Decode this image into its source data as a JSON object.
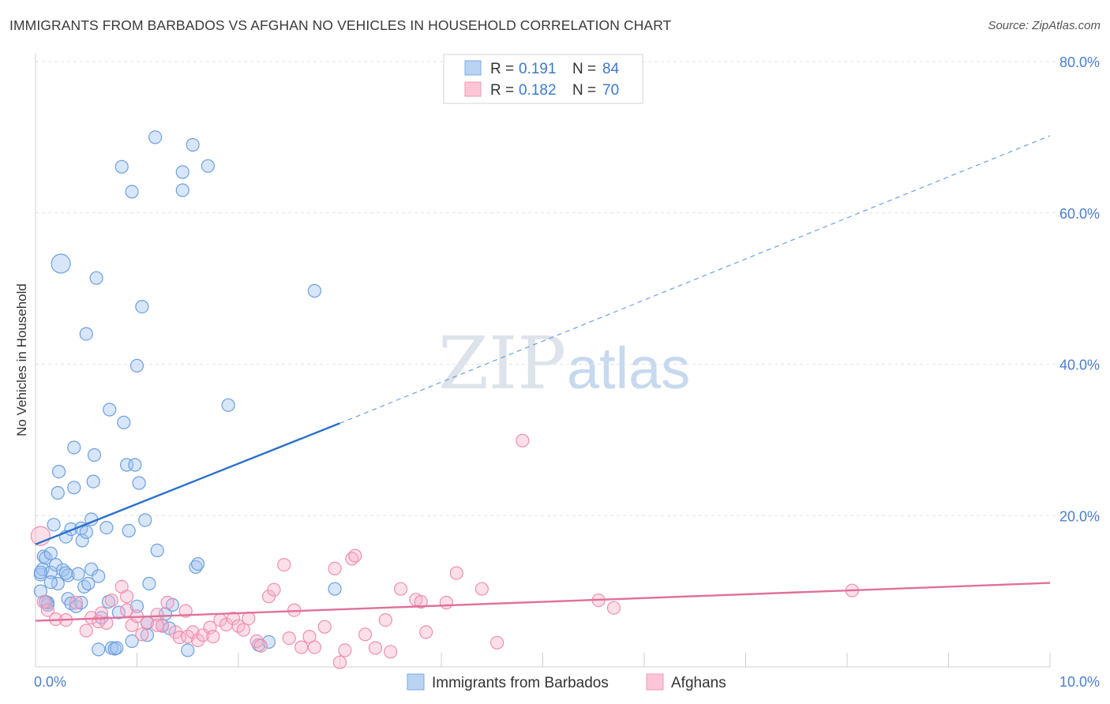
{
  "title": "IMMIGRANTS FROM BARBADOS VS AFGHAN NO VEHICLES IN HOUSEHOLD CORRELATION CHART",
  "source": "Source: ZipAtlas.com",
  "watermark": {
    "zip": "ZIP",
    "atlas": "atlas"
  },
  "legend": {
    "rows": [
      {
        "r_label": "R = ",
        "r_value": "0.191",
        "n_label": "N = ",
        "n_value": "84"
      },
      {
        "r_label": "R = ",
        "r_value": "0.182",
        "n_label": "N = ",
        "n_value": "70"
      }
    ]
  },
  "chart_data": {
    "type": "scatter",
    "title": "IMMIGRANTS FROM BARBADOS VS AFGHAN NO VEHICLES IN HOUSEHOLD CORRELATION CHART",
    "xlabel": "",
    "ylabel": "No Vehicles in Household",
    "xlim": [
      0,
      10
    ],
    "ylim": [
      0,
      80
    ],
    "x_ticks": [
      0,
      10
    ],
    "x_tick_labels": [
      "0.0%",
      "10.0%"
    ],
    "y_ticks": [
      20,
      40,
      60,
      80
    ],
    "y_tick_labels": [
      "20.0%",
      "40.0%",
      "60.0%",
      "80.0%"
    ],
    "grid": true,
    "legend_position": "top-center",
    "series": [
      {
        "name": "Immigrants from Barbados",
        "color": "#7fb0ea",
        "line_color": "#2a6fcc",
        "r": "0.191",
        "n": "84",
        "trend": {
          "x0": 0.0,
          "y0": 16.2,
          "x1": 3.0,
          "y1": 32.2,
          "dash_to_x": 10.0,
          "dash_to_y": 70.2
        },
        "points": [
          [
            0.05,
            12.2
          ],
          [
            0.05,
            10.0
          ],
          [
            0.07,
            12.9
          ],
          [
            0.08,
            14.6
          ],
          [
            0.1,
            14.4
          ],
          [
            0.12,
            8.2
          ],
          [
            0.12,
            8.5
          ],
          [
            0.15,
            15.0
          ],
          [
            0.15,
            12.5
          ],
          [
            0.18,
            18.8
          ],
          [
            0.2,
            13.5
          ],
          [
            0.22,
            11.0
          ],
          [
            0.22,
            23.0
          ],
          [
            0.23,
            25.8
          ],
          [
            0.25,
            53.3
          ],
          [
            0.27,
            12.8
          ],
          [
            0.3,
            17.2
          ],
          [
            0.32,
            9.0
          ],
          [
            0.32,
            12.1
          ],
          [
            0.35,
            8.4
          ],
          [
            0.35,
            18.2
          ],
          [
            0.38,
            23.7
          ],
          [
            0.38,
            29.0
          ],
          [
            0.4,
            8.0
          ],
          [
            0.42,
            12.3
          ],
          [
            0.45,
            18.3
          ],
          [
            0.46,
            16.7
          ],
          [
            0.48,
            10.6
          ],
          [
            0.5,
            17.8
          ],
          [
            0.5,
            44.0
          ],
          [
            0.52,
            11.0
          ],
          [
            0.55,
            19.5
          ],
          [
            0.55,
            12.9
          ],
          [
            0.57,
            24.5
          ],
          [
            0.58,
            28.0
          ],
          [
            0.6,
            51.4
          ],
          [
            0.62,
            2.3
          ],
          [
            0.65,
            6.5
          ],
          [
            0.7,
            18.4
          ],
          [
            0.72,
            8.6
          ],
          [
            0.73,
            34.0
          ],
          [
            0.75,
            2.5
          ],
          [
            0.78,
            2.4
          ],
          [
            0.8,
            2.5
          ],
          [
            0.82,
            7.2
          ],
          [
            0.85,
            66.1
          ],
          [
            0.87,
            32.3
          ],
          [
            0.9,
            26.7
          ],
          [
            0.92,
            18.0
          ],
          [
            0.95,
            62.8
          ],
          [
            0.95,
            3.4
          ],
          [
            0.98,
            26.7
          ],
          [
            1.0,
            39.8
          ],
          [
            1.02,
            24.3
          ],
          [
            1.05,
            47.6
          ],
          [
            1.08,
            19.4
          ],
          [
            1.1,
            4.2
          ],
          [
            1.12,
            11.0
          ],
          [
            1.18,
            70.0
          ],
          [
            1.2,
            15.4
          ],
          [
            1.25,
            5.5
          ],
          [
            1.28,
            7.0
          ],
          [
            1.32,
            5.1
          ],
          [
            1.35,
            8.2
          ],
          [
            1.45,
            63.0
          ],
          [
            1.45,
            65.4
          ],
          [
            1.5,
            2.2
          ],
          [
            1.55,
            69.0
          ],
          [
            1.58,
            13.2
          ],
          [
            1.6,
            13.6
          ],
          [
            1.7,
            66.2
          ],
          [
            1.9,
            34.6
          ],
          [
            2.2,
            2.9
          ],
          [
            2.3,
            3.3
          ],
          [
            2.75,
            49.7
          ],
          [
            2.95,
            10.3
          ],
          [
            0.1,
            8.6
          ],
          [
            0.3,
            12.4
          ],
          [
            1.0,
            8.0
          ],
          [
            1.1,
            5.8
          ],
          [
            0.62,
            12.0
          ],
          [
            0.45,
            8.5
          ],
          [
            0.15,
            11.2
          ],
          [
            0.05,
            12.5
          ]
        ]
      },
      {
        "name": "Afghans",
        "color": "#f6a8c0",
        "line_color": "#e0709a",
        "r": "0.182",
        "n": "70",
        "trend": {
          "x0": 0.0,
          "y0": 6.1,
          "x1": 10.0,
          "y1": 11.1
        },
        "points": [
          [
            0.05,
            17.3
          ],
          [
            0.08,
            8.6
          ],
          [
            0.12,
            7.5
          ],
          [
            0.2,
            6.3
          ],
          [
            0.3,
            6.2
          ],
          [
            0.4,
            8.5
          ],
          [
            0.5,
            4.8
          ],
          [
            0.55,
            6.5
          ],
          [
            0.62,
            6.0
          ],
          [
            0.65,
            7.1
          ],
          [
            0.7,
            5.8
          ],
          [
            0.75,
            8.8
          ],
          [
            0.85,
            10.6
          ],
          [
            0.9,
            7.5
          ],
          [
            0.9,
            9.3
          ],
          [
            0.95,
            5.5
          ],
          [
            1.0,
            6.7
          ],
          [
            1.05,
            4.3
          ],
          [
            1.1,
            5.9
          ],
          [
            1.2,
            6.9
          ],
          [
            1.25,
            5.4
          ],
          [
            1.3,
            8.5
          ],
          [
            1.38,
            4.6
          ],
          [
            1.42,
            3.9
          ],
          [
            1.48,
            7.4
          ],
          [
            1.5,
            4.0
          ],
          [
            1.55,
            4.6
          ],
          [
            1.6,
            3.5
          ],
          [
            1.65,
            4.2
          ],
          [
            1.72,
            5.2
          ],
          [
            1.75,
            4.0
          ],
          [
            1.82,
            6.2
          ],
          [
            1.88,
            5.6
          ],
          [
            1.95,
            6.4
          ],
          [
            2.0,
            5.4
          ],
          [
            2.05,
            4.9
          ],
          [
            2.1,
            6.4
          ],
          [
            2.18,
            3.4
          ],
          [
            2.22,
            2.8
          ],
          [
            2.3,
            9.3
          ],
          [
            2.35,
            10.2
          ],
          [
            2.45,
            13.5
          ],
          [
            2.5,
            3.8
          ],
          [
            2.55,
            7.5
          ],
          [
            2.62,
            2.6
          ],
          [
            2.7,
            4.0
          ],
          [
            2.75,
            2.6
          ],
          [
            2.85,
            5.3
          ],
          [
            2.95,
            13.0
          ],
          [
            3.0,
            0.6
          ],
          [
            3.05,
            2.2
          ],
          [
            3.12,
            14.3
          ],
          [
            3.15,
            14.7
          ],
          [
            3.25,
            4.3
          ],
          [
            3.35,
            2.5
          ],
          [
            3.45,
            6.2
          ],
          [
            3.5,
            2.0
          ],
          [
            3.6,
            10.3
          ],
          [
            3.75,
            8.9
          ],
          [
            3.8,
            8.6
          ],
          [
            3.85,
            4.6
          ],
          [
            4.05,
            8.5
          ],
          [
            4.15,
            12.4
          ],
          [
            4.4,
            10.3
          ],
          [
            4.55,
            3.2
          ],
          [
            4.8,
            29.9
          ],
          [
            5.55,
            8.8
          ],
          [
            5.7,
            7.8
          ],
          [
            8.05,
            10.1
          ],
          [
            1.2,
            5.5
          ]
        ]
      }
    ]
  }
}
